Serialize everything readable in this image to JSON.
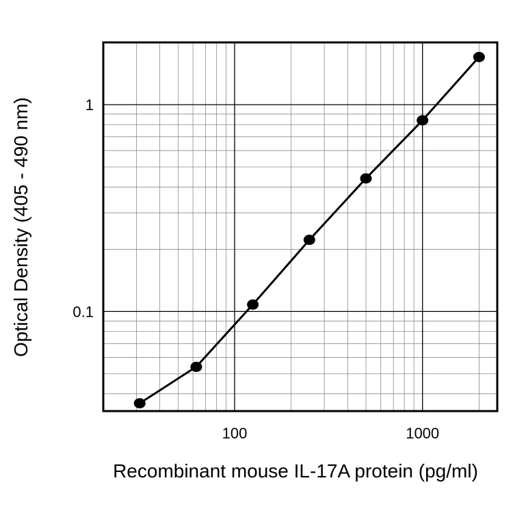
{
  "chart_data": {
    "type": "line",
    "title": "",
    "xlabel": "Recombinant mouse IL-17A protein (pg/ml)",
    "ylabel": "Optical Density (405 - 490 nm)",
    "xscale": "log",
    "yscale": "log",
    "xlim": [
      20,
      2500
    ],
    "ylim": [
      0.033,
      2.0
    ],
    "x_ticks": [
      {
        "value": 100,
        "label": "100"
      },
      {
        "value": 1000,
        "label": "1000"
      }
    ],
    "y_ticks": [
      {
        "value": 0.1,
        "label": "0.1"
      },
      {
        "value": 1,
        "label": "1"
      }
    ],
    "grid": true,
    "legend": "none",
    "series": [
      {
        "x": [
          31.25,
          62.5,
          125,
          250,
          500,
          1000,
          2000
        ],
        "y": [
          0.036,
          0.054,
          0.108,
          0.222,
          0.44,
          0.84,
          1.7
        ],
        "color": "#000000",
        "marker": "filled-circle"
      }
    ]
  }
}
